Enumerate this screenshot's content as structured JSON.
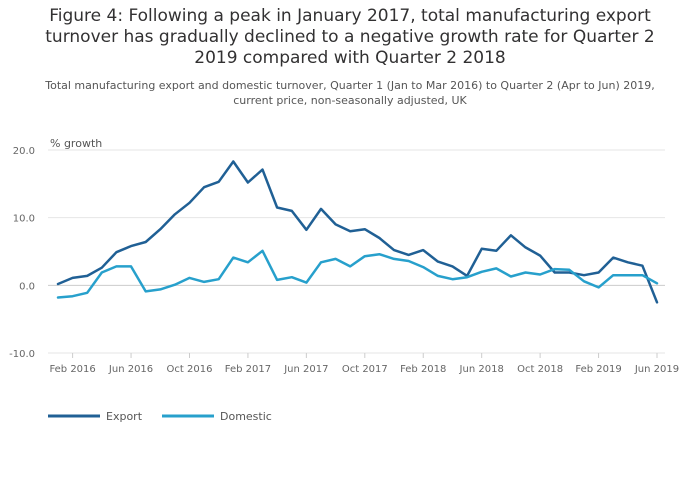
{
  "title": "Figure 4: Following a peak in January 2017, total manufacturing export\nturnover has gradually declined to a negative growth rate for Quarter 2\n2019 compared with Quarter 2 2018",
  "subtitle": "Total manufacturing export and domestic turnover, Quarter 1 (Jan to Mar 2016) to Quarter 2 (Apr to Jun) 2019,\ncurrent price, non-seasonally adjusted, UK",
  "colors": {
    "export": "#206095",
    "domestic": "#27a0cc",
    "grid": "#e6e6e6",
    "zero": "#cccccc"
  },
  "chart_data": {
    "type": "line",
    "title": "",
    "xlabel": "",
    "ylabel": "% growth",
    "ylim": [
      -10,
      20
    ],
    "yticks": [
      20,
      10,
      0,
      -10
    ],
    "ytick_labels": [
      "20.0",
      "10.0",
      "0.0",
      "-10.0"
    ],
    "xtick_labels": [
      "Feb 2016",
      "Jun 2016",
      "Oct 2016",
      "Feb 2017",
      "Jun 2017",
      "Oct 2017",
      "Feb 2018",
      "Jun 2018",
      "Oct 2018",
      "Feb 2019",
      "Jun 2019"
    ],
    "xtick_index": [
      1,
      5,
      9,
      13,
      17,
      21,
      25,
      29,
      33,
      37,
      41
    ],
    "legend_position": "bottom-left",
    "grid": true,
    "x": [
      "Jan 2016",
      "Feb 2016",
      "Mar 2016",
      "Apr 2016",
      "May 2016",
      "Jun 2016",
      "Jul 2016",
      "Aug 2016",
      "Sep 2016",
      "Oct 2016",
      "Nov 2016",
      "Dec 2016",
      "Jan 2017",
      "Feb 2017",
      "Mar 2017",
      "Apr 2017",
      "May 2017",
      "Jun 2017",
      "Jul 2017",
      "Aug 2017",
      "Sep 2017",
      "Oct 2017",
      "Nov 2017",
      "Dec 2017",
      "Jan 2018",
      "Feb 2018",
      "Mar 2018",
      "Apr 2018",
      "May 2018",
      "Jun 2018",
      "Jul 2018",
      "Aug 2018",
      "Sep 2018",
      "Oct 2018",
      "Nov 2018",
      "Dec 2018",
      "Jan 2019",
      "Feb 2019",
      "Mar 2019",
      "Apr 2019",
      "May 2019",
      "Jun 2019"
    ],
    "series": [
      {
        "name": "Export",
        "values": [
          0.2,
          1.1,
          1.4,
          2.6,
          4.9,
          5.8,
          6.4,
          8.3,
          10.5,
          12.2,
          14.5,
          15.3,
          18.3,
          15.2,
          17.1,
          11.5,
          11.0,
          8.2,
          11.3,
          9.0,
          8.0,
          8.3,
          7.0,
          5.2,
          4.5,
          5.2,
          3.5,
          2.8,
          1.4,
          5.4,
          5.1,
          7.4,
          5.6,
          4.4,
          1.9,
          1.9,
          1.5,
          1.9,
          4.1,
          3.4,
          2.9,
          -2.5
        ]
      },
      {
        "name": "Domestic",
        "values": [
          -1.8,
          -1.6,
          -1.1,
          1.9,
          2.8,
          2.8,
          -0.9,
          -0.6,
          0.1,
          1.1,
          0.5,
          0.9,
          4.1,
          3.4,
          5.1,
          0.8,
          1.2,
          0.4,
          3.4,
          3.9,
          2.8,
          4.3,
          4.6,
          3.9,
          3.6,
          2.7,
          1.4,
          0.9,
          1.2,
          2.0,
          2.5,
          1.3,
          1.9,
          1.6,
          2.4,
          2.3,
          0.6,
          -0.3,
          1.5,
          1.5,
          1.5,
          0.3
        ]
      }
    ]
  }
}
